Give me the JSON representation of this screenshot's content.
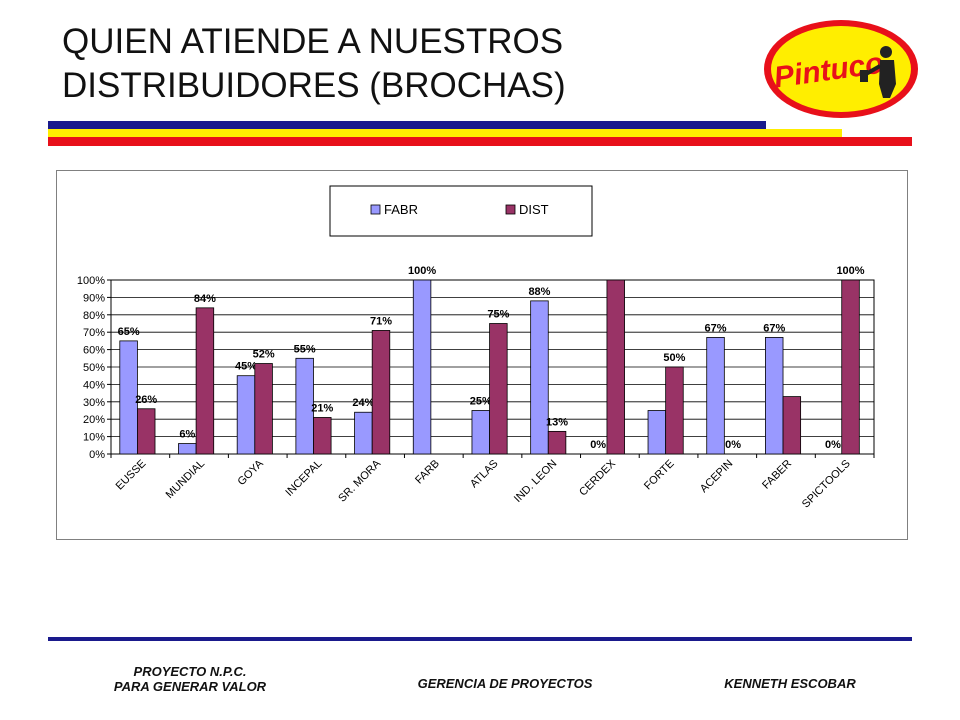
{
  "slide": {
    "title_line1": "QUIEN ATIENDE A NUESTROS",
    "title_line2": "DISTRIBUIDORES (BROCHAS)",
    "logo_text": "Pintuco",
    "colors": {
      "blue": "#1a1a8c",
      "yellow": "#ffee00",
      "red": "#e8101a"
    }
  },
  "footer": {
    "left_line1": "PROYECTO N.P.C.",
    "left_line2": "PARA GENERAR VALOR",
    "center": "GERENCIA DE PROYECTOS",
    "right": "KENNETH ESCOBAR"
  },
  "chart_data": {
    "type": "bar",
    "categories": [
      "EUSSE",
      "MUNDIAL",
      "GOYA",
      "INCEPAL",
      "SR. MORA",
      "FARB",
      "ATLAS",
      "IND. LEON",
      "CERDEX",
      "FORTE",
      "ACEPIN",
      "FABER",
      "SPICTOOLS"
    ],
    "series": [
      {
        "name": "FABR",
        "color": "#9999ff",
        "values": [
          65,
          6,
          45,
          55,
          24,
          100,
          25,
          88,
          0,
          25,
          67,
          67,
          0
        ],
        "labels": [
          "65%",
          "6%",
          "45%",
          "55%",
          "24%",
          "100%",
          "25%",
          "88%",
          "0%",
          "",
          "67%",
          "67%",
          "0%"
        ]
      },
      {
        "name": "DIST",
        "color": "#993366",
        "values": [
          26,
          84,
          52,
          21,
          71,
          0,
          75,
          13,
          100,
          50,
          0,
          33,
          100
        ],
        "labels": [
          "26%",
          "84%",
          "52%",
          "21%",
          "71%",
          "",
          "75%",
          "13%",
          "",
          "50%",
          "0%",
          "",
          "100%"
        ]
      }
    ],
    "yticks": [
      "0%",
      "10%",
      "20%",
      "30%",
      "40%",
      "50%",
      "60%",
      "70%",
      "80%",
      "90%",
      "100%"
    ],
    "ylim": [
      0,
      100
    ],
    "legend_position": "top-center",
    "grid": true
  }
}
